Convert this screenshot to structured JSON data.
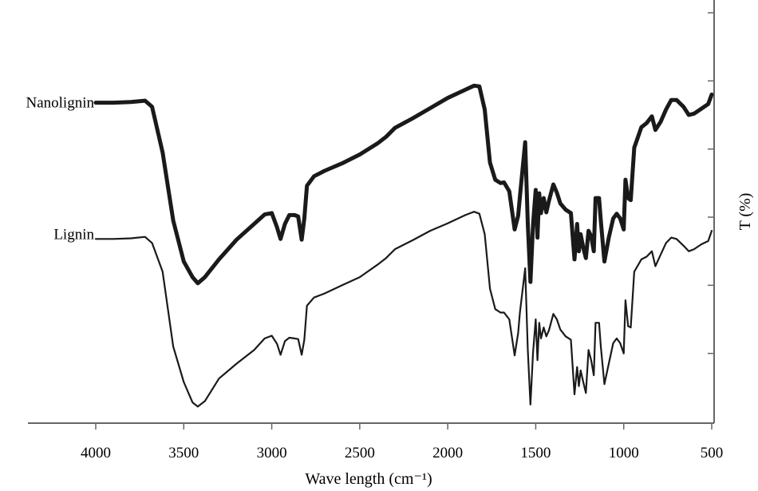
{
  "chart_data": {
    "type": "line",
    "xlabel": "Wave length (cm⁻¹)",
    "ylabel": "T (%)",
    "xlim": [
      4450,
      500
    ],
    "x_reversed": true,
    "x_ticks": [
      4000,
      3500,
      3000,
      2500,
      2000,
      1500,
      1000,
      500
    ],
    "x_tick_labels": [
      "4000",
      "3500",
      "3000",
      "2500",
      "2000",
      "1500",
      "1000",
      "500"
    ],
    "y_tick_labels_shown": false,
    "ylim": [
      0,
      6
    ],
    "y_ticks": [
      0,
      1,
      2,
      3,
      4,
      5,
      6
    ],
    "legend": "inline labels at left of each curve",
    "colors": {
      "axis": "#666666",
      "line": "#1a1a1a"
    },
    "series": [
      {
        "name": "Nanolignin",
        "line_weight": "thick",
        "points": [
          [
            4000,
            4.68
          ],
          [
            3900,
            4.68
          ],
          [
            3800,
            4.69
          ],
          [
            3720,
            4.71
          ],
          [
            3680,
            4.62
          ],
          [
            3620,
            3.95
          ],
          [
            3560,
            2.95
          ],
          [
            3500,
            2.35
          ],
          [
            3450,
            2.12
          ],
          [
            3420,
            2.03
          ],
          [
            3380,
            2.12
          ],
          [
            3300,
            2.38
          ],
          [
            3200,
            2.67
          ],
          [
            3100,
            2.9
          ],
          [
            3040,
            3.04
          ],
          [
            3000,
            3.06
          ],
          [
            2970,
            2.85
          ],
          [
            2950,
            2.68
          ],
          [
            2925,
            2.9
          ],
          [
            2900,
            3.03
          ],
          [
            2870,
            3.03
          ],
          [
            2850,
            3.01
          ],
          [
            2830,
            2.67
          ],
          [
            2815,
            2.98
          ],
          [
            2800,
            3.46
          ],
          [
            2760,
            3.6
          ],
          [
            2700,
            3.68
          ],
          [
            2600,
            3.79
          ],
          [
            2500,
            3.92
          ],
          [
            2400,
            4.08
          ],
          [
            2350,
            4.18
          ],
          [
            2300,
            4.31
          ],
          [
            2200,
            4.45
          ],
          [
            2100,
            4.6
          ],
          [
            2000,
            4.75
          ],
          [
            1900,
            4.87
          ],
          [
            1850,
            4.93
          ],
          [
            1820,
            4.92
          ],
          [
            1790,
            4.58
          ],
          [
            1760,
            3.8
          ],
          [
            1730,
            3.55
          ],
          [
            1700,
            3.5
          ],
          [
            1680,
            3.51
          ],
          [
            1650,
            3.38
          ],
          [
            1620,
            2.82
          ],
          [
            1600,
            3.02
          ],
          [
            1590,
            3.3
          ],
          [
            1560,
            4.1
          ],
          [
            1545,
            2.9
          ],
          [
            1530,
            2.05
          ],
          [
            1515,
            2.9
          ],
          [
            1500,
            3.4
          ],
          [
            1490,
            2.7
          ],
          [
            1480,
            3.35
          ],
          [
            1470,
            3.06
          ],
          [
            1455,
            3.28
          ],
          [
            1440,
            3.07
          ],
          [
            1425,
            3.24
          ],
          [
            1400,
            3.48
          ],
          [
            1380,
            3.36
          ],
          [
            1360,
            3.2
          ],
          [
            1330,
            3.11
          ],
          [
            1300,
            3.06
          ],
          [
            1280,
            2.38
          ],
          [
            1265,
            2.9
          ],
          [
            1255,
            2.5
          ],
          [
            1245,
            2.75
          ],
          [
            1230,
            2.55
          ],
          [
            1215,
            2.4
          ],
          [
            1200,
            2.8
          ],
          [
            1185,
            2.72
          ],
          [
            1170,
            2.5
          ],
          [
            1160,
            3.28
          ],
          [
            1140,
            3.28
          ],
          [
            1130,
            2.95
          ],
          [
            1110,
            2.35
          ],
          [
            1085,
            2.7
          ],
          [
            1060,
            2.98
          ],
          [
            1040,
            3.05
          ],
          [
            1020,
            2.98
          ],
          [
            1000,
            2.82
          ],
          [
            990,
            3.55
          ],
          [
            975,
            3.28
          ],
          [
            960,
            3.25
          ],
          [
            940,
            4.02
          ],
          [
            900,
            4.32
          ],
          [
            870,
            4.38
          ],
          [
            840,
            4.48
          ],
          [
            820,
            4.28
          ],
          [
            790,
            4.4
          ],
          [
            760,
            4.58
          ],
          [
            730,
            4.72
          ],
          [
            700,
            4.72
          ],
          [
            660,
            4.62
          ],
          [
            630,
            4.5
          ],
          [
            600,
            4.52
          ],
          [
            560,
            4.59
          ],
          [
            520,
            4.66
          ],
          [
            500,
            4.8
          ]
        ]
      },
      {
        "name": "Lignin",
        "line_weight": "thin",
        "points": [
          [
            4000,
            2.68
          ],
          [
            3900,
            2.68
          ],
          [
            3800,
            2.69
          ],
          [
            3720,
            2.71
          ],
          [
            3680,
            2.62
          ],
          [
            3620,
            2.2
          ],
          [
            3560,
            1.1
          ],
          [
            3500,
            0.58
          ],
          [
            3450,
            0.28
          ],
          [
            3420,
            0.22
          ],
          [
            3380,
            0.3
          ],
          [
            3300,
            0.63
          ],
          [
            3200,
            0.85
          ],
          [
            3100,
            1.05
          ],
          [
            3040,
            1.22
          ],
          [
            3000,
            1.26
          ],
          [
            2970,
            1.14
          ],
          [
            2950,
            0.98
          ],
          [
            2925,
            1.18
          ],
          [
            2900,
            1.23
          ],
          [
            2870,
            1.22
          ],
          [
            2850,
            1.21
          ],
          [
            2830,
            0.98
          ],
          [
            2815,
            1.2
          ],
          [
            2800,
            1.7
          ],
          [
            2760,
            1.82
          ],
          [
            2700,
            1.88
          ],
          [
            2600,
            2.0
          ],
          [
            2500,
            2.12
          ],
          [
            2400,
            2.3
          ],
          [
            2350,
            2.4
          ],
          [
            2300,
            2.53
          ],
          [
            2200,
            2.66
          ],
          [
            2100,
            2.8
          ],
          [
            2000,
            2.91
          ],
          [
            1900,
            3.03
          ],
          [
            1850,
            3.08
          ],
          [
            1820,
            3.05
          ],
          [
            1790,
            2.75
          ],
          [
            1760,
            1.95
          ],
          [
            1730,
            1.65
          ],
          [
            1700,
            1.6
          ],
          [
            1680,
            1.6
          ],
          [
            1650,
            1.5
          ],
          [
            1620,
            0.97
          ],
          [
            1600,
            1.3
          ],
          [
            1590,
            1.6
          ],
          [
            1560,
            2.25
          ],
          [
            1545,
            1.05
          ],
          [
            1530,
            0.25
          ],
          [
            1515,
            1.02
          ],
          [
            1500,
            1.5
          ],
          [
            1490,
            0.9
          ],
          [
            1480,
            1.45
          ],
          [
            1470,
            1.22
          ],
          [
            1455,
            1.38
          ],
          [
            1440,
            1.25
          ],
          [
            1425,
            1.34
          ],
          [
            1400,
            1.58
          ],
          [
            1380,
            1.5
          ],
          [
            1360,
            1.35
          ],
          [
            1330,
            1.25
          ],
          [
            1300,
            1.2
          ],
          [
            1280,
            0.4
          ],
          [
            1265,
            0.8
          ],
          [
            1255,
            0.52
          ],
          [
            1245,
            0.75
          ],
          [
            1230,
            0.58
          ],
          [
            1215,
            0.42
          ],
          [
            1200,
            1.05
          ],
          [
            1185,
            0.9
          ],
          [
            1170,
            0.68
          ],
          [
            1160,
            1.45
          ],
          [
            1140,
            1.45
          ],
          [
            1130,
            1.1
          ],
          [
            1110,
            0.55
          ],
          [
            1085,
            0.85
          ],
          [
            1060,
            1.15
          ],
          [
            1040,
            1.22
          ],
          [
            1020,
            1.15
          ],
          [
            1000,
            1.0
          ],
          [
            990,
            1.78
          ],
          [
            975,
            1.4
          ],
          [
            960,
            1.38
          ],
          [
            940,
            2.2
          ],
          [
            900,
            2.38
          ],
          [
            870,
            2.42
          ],
          [
            840,
            2.5
          ],
          [
            820,
            2.28
          ],
          [
            790,
            2.45
          ],
          [
            760,
            2.62
          ],
          [
            730,
            2.7
          ],
          [
            700,
            2.68
          ],
          [
            660,
            2.58
          ],
          [
            630,
            2.5
          ],
          [
            600,
            2.53
          ],
          [
            560,
            2.6
          ],
          [
            520,
            2.65
          ],
          [
            500,
            2.8
          ]
        ]
      }
    ]
  }
}
